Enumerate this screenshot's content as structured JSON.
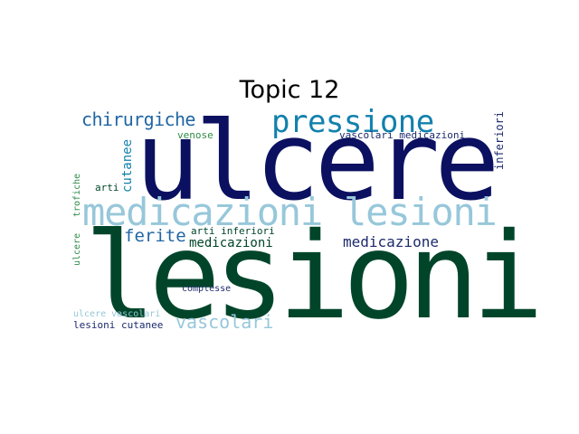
{
  "title": "Topic 12",
  "colors": {
    "dark_navy": "#0b1160",
    "dark_green": "#00452a",
    "light_blue": "#97c7da",
    "teal": "#1281ad",
    "blue_mid": "#2166a3",
    "green": "#2f8a48",
    "navy": "#1c2a6b"
  },
  "words": [
    {
      "id": "ulcere",
      "text": "ulcere",
      "color": "dark_navy"
    },
    {
      "id": "lesioni",
      "text": "lesioni",
      "color": "dark_green"
    },
    {
      "id": "medicazioni-lesioni",
      "text": "medicazioni lesioni",
      "color": "light_blue"
    },
    {
      "id": "pressione",
      "text": "pressione",
      "color": "teal"
    },
    {
      "id": "chirurgiche",
      "text": "chirurgiche",
      "color": "blue_mid"
    },
    {
      "id": "medicazione",
      "text": "medicazione",
      "color": "navy"
    },
    {
      "id": "ferite",
      "text": "ferite",
      "color": "blue_mid"
    },
    {
      "id": "medicazioni",
      "text": "medicazioni",
      "color": "dark_green"
    },
    {
      "id": "vascolari",
      "text": "vascolari",
      "color": "light_blue"
    },
    {
      "id": "cutanee",
      "text": "cutanee",
      "color": "teal"
    },
    {
      "id": "inferiori",
      "text": "inferiori",
      "color": "navy"
    },
    {
      "id": "vascolari-medicazioni",
      "text": "vascolari medicazioni",
      "color": "navy"
    },
    {
      "id": "venose",
      "text": "venose",
      "color": "green"
    },
    {
      "id": "arti",
      "text": "arti",
      "color": "dark_green"
    },
    {
      "id": "trofiche",
      "text": "trofiche",
      "color": "green"
    },
    {
      "id": "ulcere-trofiche",
      "text": "ulcere",
      "color": "green"
    },
    {
      "id": "arti-inferiori",
      "text": "arti inferiori",
      "color": "dark_green"
    },
    {
      "id": "complesse",
      "text": "complesse",
      "color": "navy"
    },
    {
      "id": "ulcere-vascolari",
      "text": "ulcere vascolari",
      "color": "light_blue"
    },
    {
      "id": "lesioni-cutanee",
      "text": "lesioni cutanee",
      "color": "navy"
    }
  ]
}
